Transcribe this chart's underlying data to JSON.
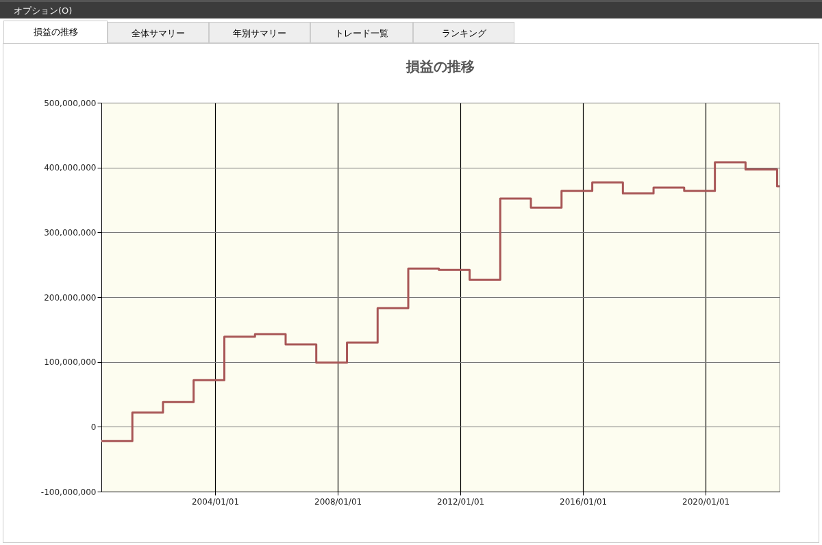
{
  "chart_data": {
    "type": "step",
    "title": "損益の推移",
    "annotations": [
      "オプション(O)",
      "損益の推移",
      "全体サマリー",
      "年別サマリー",
      "トレード一覧",
      "ランキング"
    ],
    "series": [
      {
        "color": "#a85656",
        "x": [
          "2000-04-16",
          "2001-04-20",
          "2002-04-20",
          "2003-04-20",
          "2004-04-20",
          "2005-04-20",
          "2006-04-20",
          "2007-04-20",
          "2008-04-20",
          "2009-04-20",
          "2010-04-20",
          "2011-04-20",
          "2012-04-20",
          "2013-04-20",
          "2014-04-20",
          "2015-04-20",
          "2016-04-20",
          "2017-04-20",
          "2018-04-20",
          "2019-04-20",
          "2020-04-20",
          "2021-04-20",
          "2022-05-01",
          "2022-05-30"
        ],
        "values": [
          -22000000,
          22000000,
          38000000,
          72000000,
          139000000,
          143000000,
          127000000,
          99000000,
          130000000,
          183000000,
          244000000,
          242000000,
          227000000,
          352000000,
          338000000,
          364000000,
          377000000,
          360000000,
          369000000,
          364000000,
          408000000,
          397000000,
          371000000,
          371000000
        ]
      }
    ],
    "xlim": [
      "2000-04-16",
      "2022-05-30"
    ],
    "xticks": [
      {
        "value": "2004-01-01",
        "label": "2004/01/01"
      },
      {
        "value": "2008-01-01",
        "label": "2008/01/01"
      },
      {
        "value": "2012-01-01",
        "label": "2012/01/01"
      },
      {
        "value": "2016-01-01",
        "label": "2016/01/01"
      },
      {
        "value": "2020-01-01",
        "label": "2020/01/01"
      }
    ],
    "ylim": [
      -100000000,
      500000000
    ],
    "yticks": [
      {
        "value": -100000000,
        "label": "-100,000,000"
      },
      0,
      {
        "value": 100000000,
        "label": "100,000,000"
      },
      {
        "value": 200000000,
        "label": "200,000,000"
      },
      {
        "value": 300000000,
        "label": "300,000,000"
      },
      {
        "value": 400000000,
        "label": "400,000,000"
      },
      {
        "value": 500000000,
        "label": "500,000,000"
      }
    ],
    "grid": true,
    "line_style": "solid"
  }
}
